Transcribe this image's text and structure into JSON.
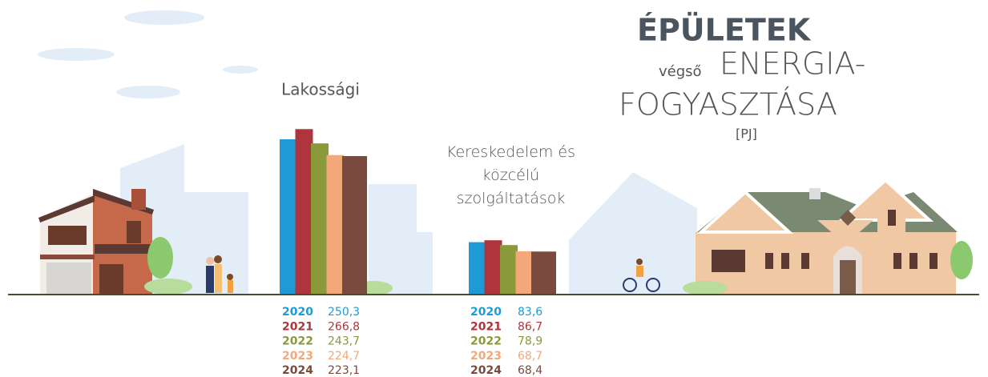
{
  "chart_data": {
    "type": "bar",
    "title": "ÉPÜLETEK",
    "subtitle_small": "végső",
    "subtitle_1": "ENERGIA-",
    "subtitle_2": "FOGYASZTÁSA",
    "unit": "[PJ]",
    "categories": [
      "Lakossági",
      "Kereskedelem és közcélú szolgáltatások"
    ],
    "series": [
      {
        "name": "2020",
        "color": "#1e9ad6",
        "values": [
          250.3,
          83.6
        ],
        "value_labels": [
          "250,3",
          "83,6"
        ]
      },
      {
        "name": "2021",
        "color": "#b0343c",
        "values": [
          266.8,
          86.7
        ],
        "value_labels": [
          "266,8",
          "86,7"
        ]
      },
      {
        "name": "2022",
        "color": "#8a9a3a",
        "values": [
          243.7,
          78.9
        ],
        "value_labels": [
          "243,7",
          "78,9"
        ]
      },
      {
        "name": "2023",
        "color": "#f2a878",
        "values": [
          224.7,
          68.7
        ],
        "value_labels": [
          "224,7",
          "68,7"
        ]
      },
      {
        "name": "2024",
        "color": "#7a4a3e",
        "values": [
          223.1,
          68.4
        ],
        "value_labels": [
          "223,1",
          "68,4"
        ]
      }
    ]
  }
}
